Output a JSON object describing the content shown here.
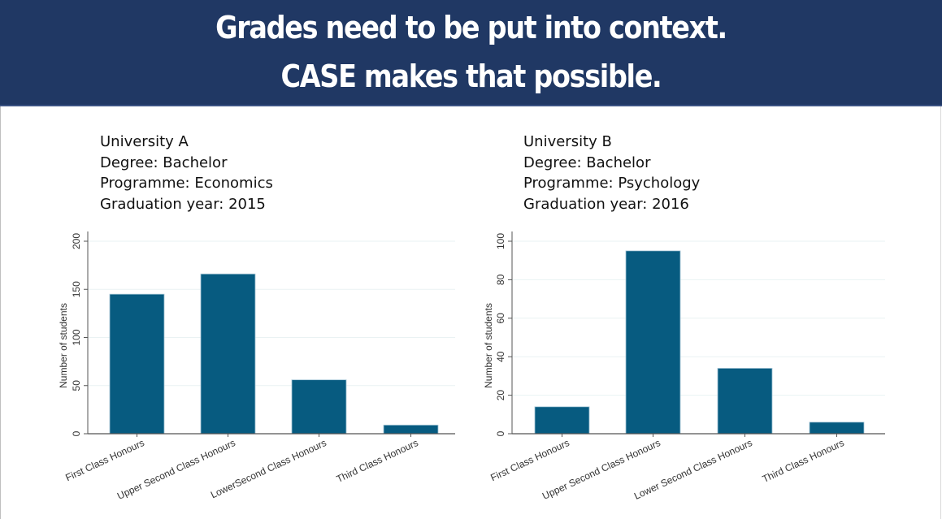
{
  "banner": {
    "line1": "Grades need to be put into context.",
    "line2": "CASE makes that possible."
  },
  "colors": {
    "banner_bg": "#203864",
    "bar_fill": "#075b80",
    "bar_stroke": "#a8c8d8",
    "gridline": "#eaf2f3",
    "axis": "#555555"
  },
  "panels": [
    {
      "info": {
        "university": "University A",
        "degree": "Degree: Bachelor",
        "programme": "Programme: Economics",
        "graduation": "Graduation year: 2015"
      }
    },
    {
      "info": {
        "university": "University B",
        "degree": "Degree: Bachelor",
        "programme": "Programme: Psychology",
        "graduation": "Graduation year: 2016"
      }
    }
  ],
  "chart_data": [
    {
      "type": "bar",
      "title": "University A — Bachelor — Economics — 2015",
      "xlabel": "",
      "ylabel": "Number of students",
      "categories": [
        "First Class Honours",
        "Upper Second Class Honours",
        "LowerSecond Class Honours",
        "Third Class Honours"
      ],
      "values": [
        145,
        166,
        56,
        9
      ],
      "ylim": [
        0,
        200
      ],
      "yticks": [
        0,
        50,
        100,
        150,
        200
      ],
      "grid": true,
      "legend": "none"
    },
    {
      "type": "bar",
      "title": "University B — Bachelor — Psychology — 2016",
      "xlabel": "",
      "ylabel": "Number of students",
      "categories": [
        "First Class Honours",
        "Upper Second Class Honours",
        "Lower Second Class Honours",
        "Third Class Honours"
      ],
      "values": [
        14,
        95,
        34,
        6
      ],
      "ylim": [
        0,
        100
      ],
      "yticks": [
        0,
        20,
        40,
        60,
        80,
        100
      ],
      "grid": true,
      "legend": "none"
    }
  ]
}
